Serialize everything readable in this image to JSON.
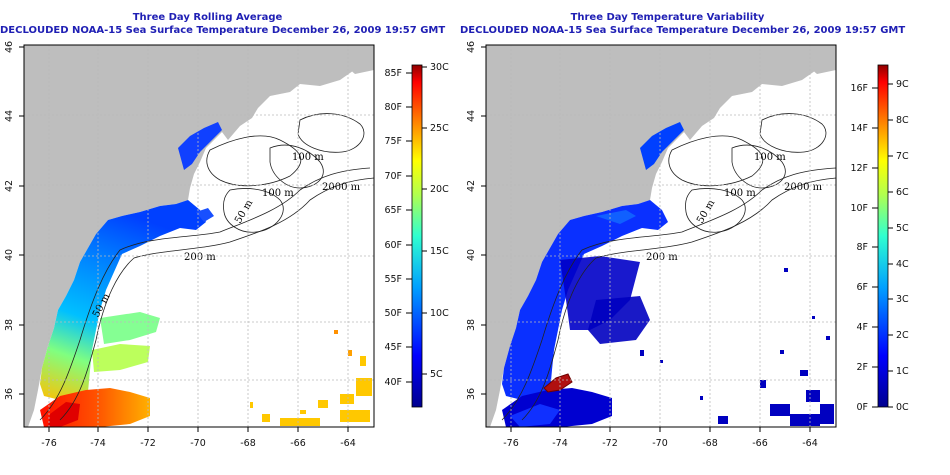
{
  "panels": [
    {
      "title": "Three Day Rolling Average",
      "subtitle": "DECLOUDED NOAA-15 Sea Surface Temperature December 26, 2009 19:57 GMT",
      "x_ticks": [
        "-76",
        "-74",
        "-72",
        "-70",
        "-68",
        "-66",
        "-64"
      ],
      "y_ticks": [
        "36",
        "38",
        "40",
        "42",
        "44",
        "46"
      ],
      "colorbar_left": [
        "85F",
        "80F",
        "75F",
        "70F",
        "65F",
        "60F",
        "55F",
        "50F",
        "45F",
        "40F"
      ],
      "colorbar_right": [
        "30C",
        "25C",
        "20C",
        "15C",
        "10C",
        "5C"
      ]
    },
    {
      "title": "Three Day Temperature Variability",
      "subtitle": "DECLOUDED NOAA-15 Sea Surface Temperature December 26, 2009 19:57 GMT",
      "x_ticks": [
        "-76",
        "-74",
        "-72",
        "-70",
        "-68",
        "-66",
        "-64"
      ],
      "y_ticks": [
        "36",
        "38",
        "40",
        "42",
        "44",
        "46"
      ],
      "colorbar_left": [
        "16F",
        "14F",
        "12F",
        "10F",
        "8F",
        "6F",
        "4F",
        "2F",
        "0F"
      ],
      "colorbar_right": [
        "9C",
        "8C",
        "7C",
        "6C",
        "5C",
        "4C",
        "3C",
        "2C",
        "1C",
        "0C"
      ]
    }
  ],
  "contour_labels": [
    "100 m",
    "100 m",
    "2000 m",
    "50 m",
    "200 m",
    "50 m"
  ],
  "colors": {
    "land": "#bebebe",
    "title": "#1f1fb4"
  }
}
